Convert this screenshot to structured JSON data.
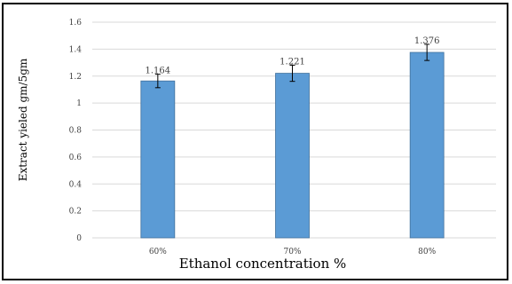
{
  "chart_data": {
    "type": "bar",
    "categories": [
      "60%",
      "70%",
      "80%"
    ],
    "values": [
      1.164,
      1.221,
      1.376
    ],
    "data_labels": [
      "1.164",
      "1.221",
      "1.376"
    ],
    "error": [
      0.05,
      0.06,
      0.06
    ],
    "ylim": [
      0,
      1.6
    ],
    "yticks": [
      "0",
      "0.2",
      "0.4",
      "0.6",
      "0.8",
      "1",
      "1.2",
      "1.4",
      "1.6"
    ],
    "ytick_values": [
      0,
      0.2,
      0.4,
      0.6,
      0.8,
      1,
      1.2,
      1.4,
      1.6
    ],
    "xlabel": "Ethanol concentration %",
    "ylabel": "Extract yieled gm/5gm",
    "title": "",
    "grid": true,
    "legend": "none",
    "bar_color": "#5b9bd5",
    "bar_edge_color": "#41719c",
    "grid_color": "#d9d9d9",
    "error_color": "#000000"
  }
}
